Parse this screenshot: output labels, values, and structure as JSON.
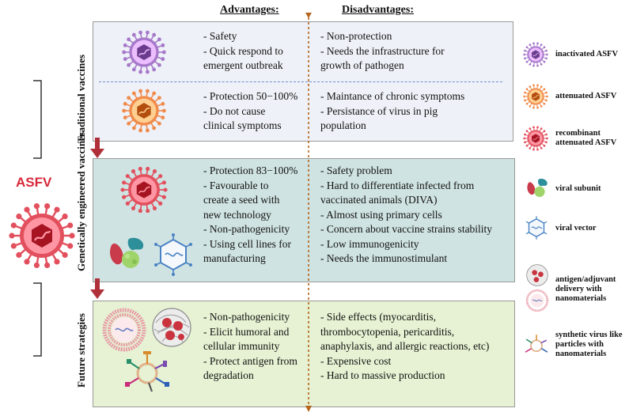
{
  "headers": {
    "advantages": "Advantages:",
    "disadvantages": "Disadvantages:"
  },
  "center_label": "ASFV",
  "sections": [
    {
      "label": "Traditional vaccines",
      "advantages_top": [
        "- Safety",
        "- Quick respond to",
        "emergent outbreak"
      ],
      "disadvantages_top": [
        "- Non-protection",
        "- Needs the infrastructure  for",
        "growth of pathogen"
      ],
      "advantages_bottom": [
        "- Protection 50−100%",
        "- Do not cause",
        "clinical symptoms"
      ],
      "disadvantages_bottom": [
        "- Maintance of chronic symptoms",
        "- Persistance of virus in pig",
        "population"
      ]
    },
    {
      "label": "Genetically engineered vaccines",
      "advantages": [
        "- Protection 83−100%",
        "- Favourable to",
        "create a seed with",
        "new technology",
        "- Non-pathogenicity",
        "- Using cell lines for",
        "manufacturing"
      ],
      "disadvantages": [
        "- Safety problem",
        "- Hard to differentiate infected from",
        "vaccinated animals (DIVA)",
        "- Almost using primary cells",
        "-  Concern about vaccine strains stability",
        "- Low immunogenicity",
        "- Needs the immunostimulant"
      ]
    },
    {
      "label": "Future strategies",
      "advantages": [
        "- Non-pathogenicity",
        "- Elicit humoral and",
        "cellular immunity",
        "- Protect antigen from",
        "degradation"
      ],
      "disadvantages": [
        "- Side effects (myocarditis,",
        "thrombocytopenia, pericarditis,",
        "anaphylaxis, and allergic reactions, etc)",
        "- Expensive cost",
        "- Hard to massive production"
      ]
    }
  ],
  "legend": [
    {
      "icon": "inactivated-virus-icon",
      "lines": [
        "inactivated ASFV"
      ],
      "color": "#a678c9"
    },
    {
      "icon": "attenuated-virus-icon",
      "lines": [
        "attenuated ASFV"
      ],
      "color": "#f08a4b"
    },
    {
      "icon": "recombinant-virus-icon",
      "lines": [
        "recombinant",
        "attenuated ASFV"
      ],
      "color": "#e2505e"
    },
    {
      "icon": "viral-subunit-icon",
      "lines": [
        "viral subunit"
      ]
    },
    {
      "icon": "viral-vector-icon",
      "lines": [
        "viral vector"
      ]
    },
    {
      "icon": "nanomaterial-delivery-icon",
      "lines": [
        "antigen/adjuvant",
        "delivery with",
        "nanomaterials"
      ]
    },
    {
      "icon": "synthetic-vlp-icon",
      "lines": [
        "synthetic virus like",
        "particles with",
        "nanomaterials"
      ]
    }
  ],
  "colors": {
    "arrow": "#b0303a",
    "divider": "#b5651d",
    "dashed": "#6d8fd0",
    "asfv": "#d8293a"
  }
}
